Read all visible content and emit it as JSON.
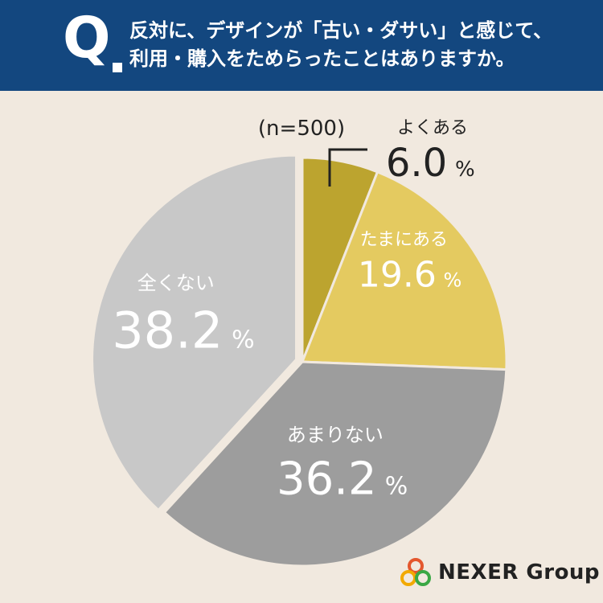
{
  "header": {
    "q_mark": "Q",
    "question_line1": "反対に、デザインが「古い・ダサい」と感じて、",
    "question_line2": "利用・購入をためらったことはありますか。"
  },
  "chart_data": {
    "type": "pie",
    "sample_size_label": "(n=500)",
    "categories": [
      "よくある",
      "たまにある",
      "あまりない",
      "全くない"
    ],
    "values": [
      6.0,
      19.6,
      36.2,
      38.2
    ],
    "value_labels": [
      "6.0",
      "19.6",
      "36.2",
      "38.2"
    ],
    "unit": "%",
    "colors": [
      "#bca42f",
      "#e4ca60",
      "#9d9d9d",
      "#c8c8c8"
    ],
    "label_colors": [
      "#222222",
      "#ffffff",
      "#ffffff",
      "#ffffff"
    ],
    "start_angle": "12 o'clock",
    "direction": "clockwise",
    "exploded_slice": "全くない"
  },
  "logo": {
    "text": "NEXER Group",
    "ring_colors": [
      "#e4572e",
      "#f2a900",
      "#3aa845"
    ]
  }
}
